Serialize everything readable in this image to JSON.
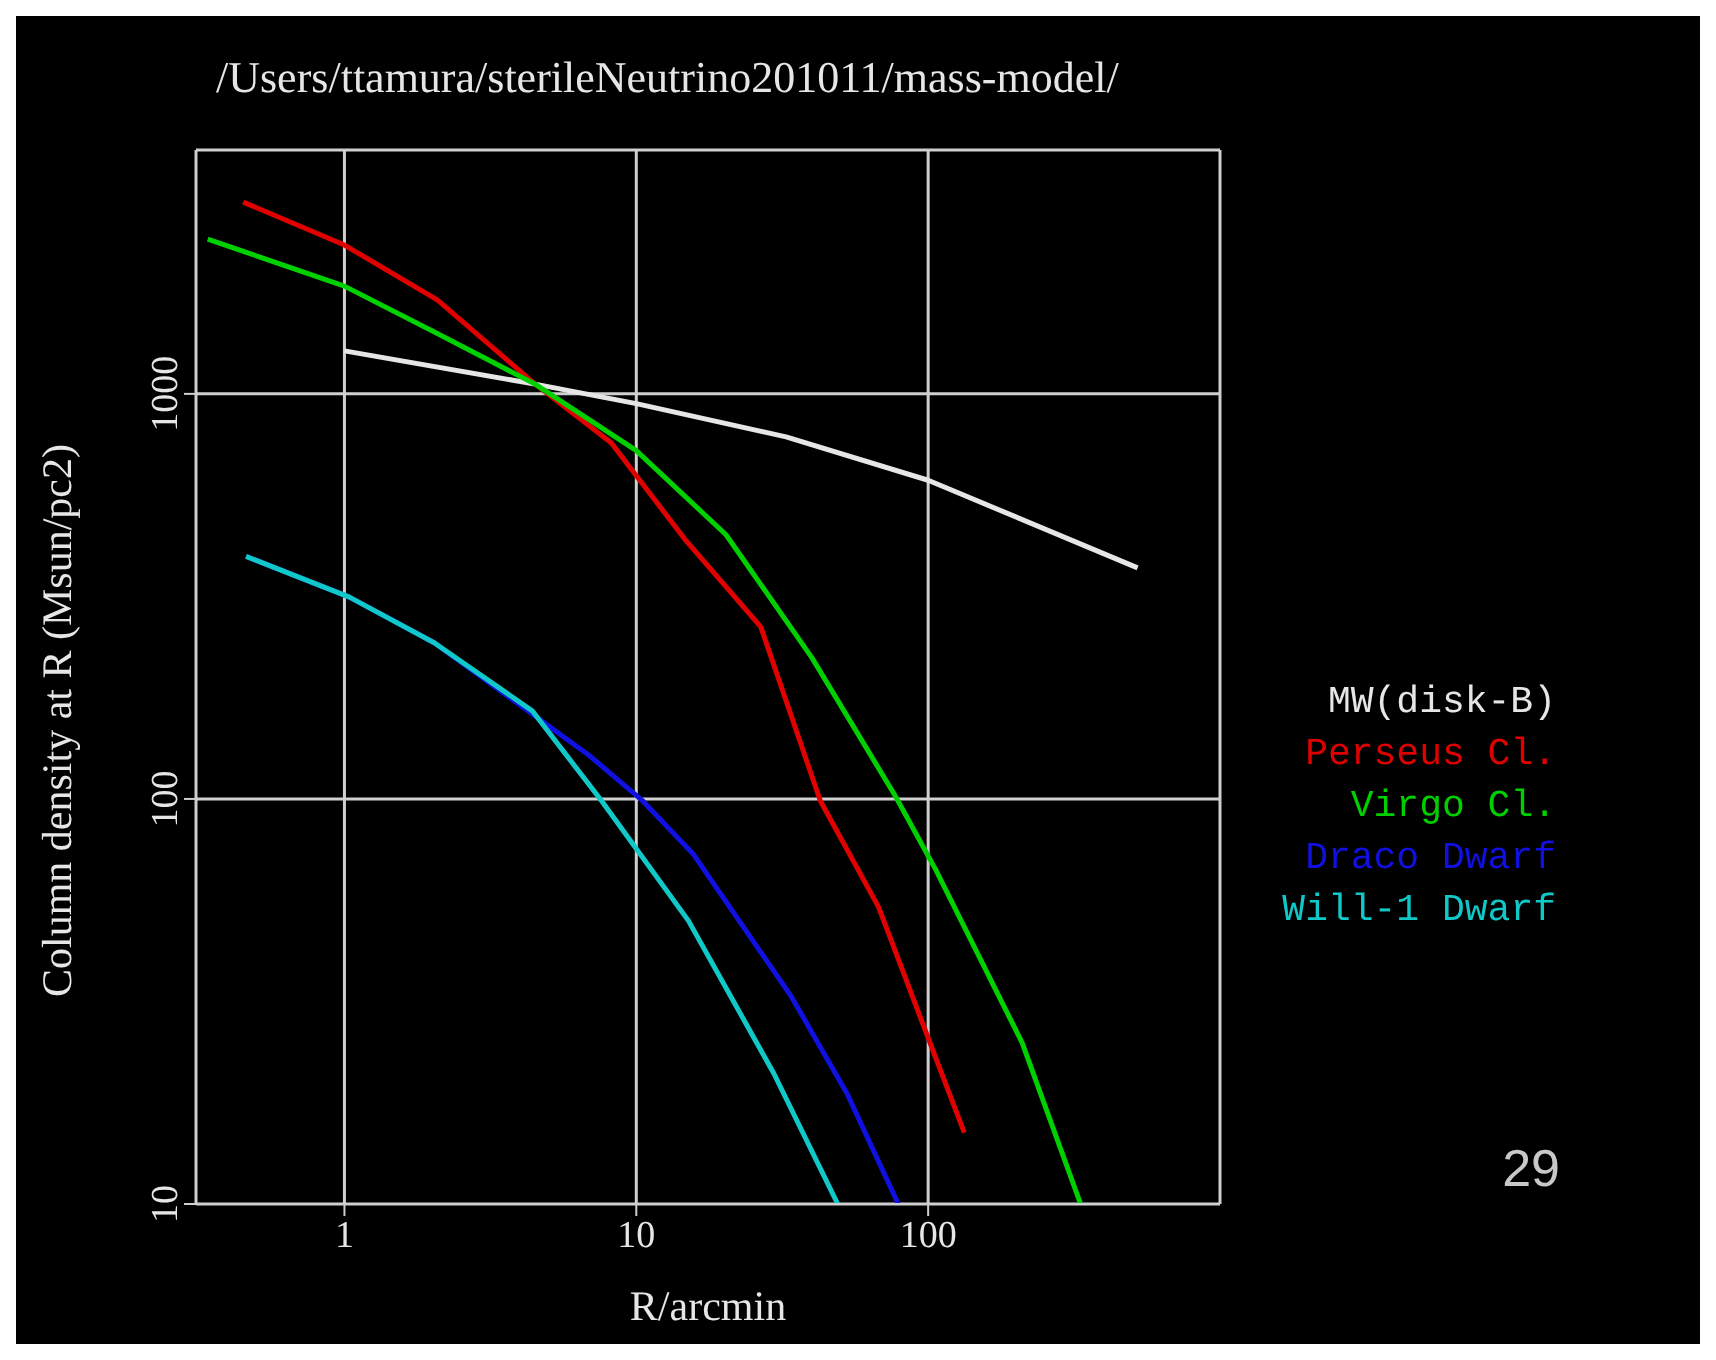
{
  "chart_data": {
    "type": "line",
    "title": "/Users/ttamura/sterileNeutrino201011/mass-model/",
    "xlabel": "R/arcmin",
    "ylabel": "Column density at R (Msun/pc2)",
    "log": "xy",
    "xlim": [
      0.31,
      1000
    ],
    "ylim": [
      10,
      4000
    ],
    "xticks": [
      1,
      10,
      100
    ],
    "yticks": [
      10,
      100,
      1000
    ],
    "grid": true,
    "legend": "right",
    "marker": "none",
    "line_style": "solid",
    "annotations": [
      "29"
    ],
    "series": [
      {
        "name": "MW(disk-B)",
        "color": "#e6e6e6",
        "x": [
          1,
          4.5,
          10,
          32.6,
          100,
          522
        ],
        "values": [
          1277,
          1057,
          946,
          783,
          612,
          372
        ]
      },
      {
        "name": "Perseus Cl.",
        "color": "#e00000",
        "x": [
          0.45,
          1,
          2.08,
          4.5,
          8.2,
          14.8,
          26.7,
          42.7,
          67.7,
          106,
          133
        ],
        "values": [
          2975,
          2330,
          1706,
          1057,
          757,
          434,
          266,
          99,
          54,
          23,
          15
        ]
      },
      {
        "name": "Virgo Cl.",
        "color": "#00d000",
        "x": [
          0.34,
          1,
          2.08,
          4.5,
          10,
          20.3,
          40,
          77,
          106,
          210,
          333
        ],
        "values": [
          2410,
          1845,
          1410,
          1057,
          724,
          449,
          223,
          102,
          67,
          25,
          10
        ]
      },
      {
        "name": "Draco Dwarf",
        "color": "#1010e0",
        "x": [
          0.46,
          1.04,
          2.03,
          6.9,
          10.5,
          15.7,
          34,
          53,
          79
        ],
        "values": [
          397,
          315,
          243,
          128,
          99,
          73,
          32.5,
          18.6,
          10
        ]
      },
      {
        "name": "Will-1 Dwarf",
        "color": "#10c8c8",
        "x": [
          0.46,
          1.04,
          2.03,
          4.4,
          7.6,
          15.1,
          29.6,
          49
        ],
        "values": [
          397,
          315,
          243,
          165,
          99,
          50,
          21,
          10
        ]
      }
    ]
  }
}
